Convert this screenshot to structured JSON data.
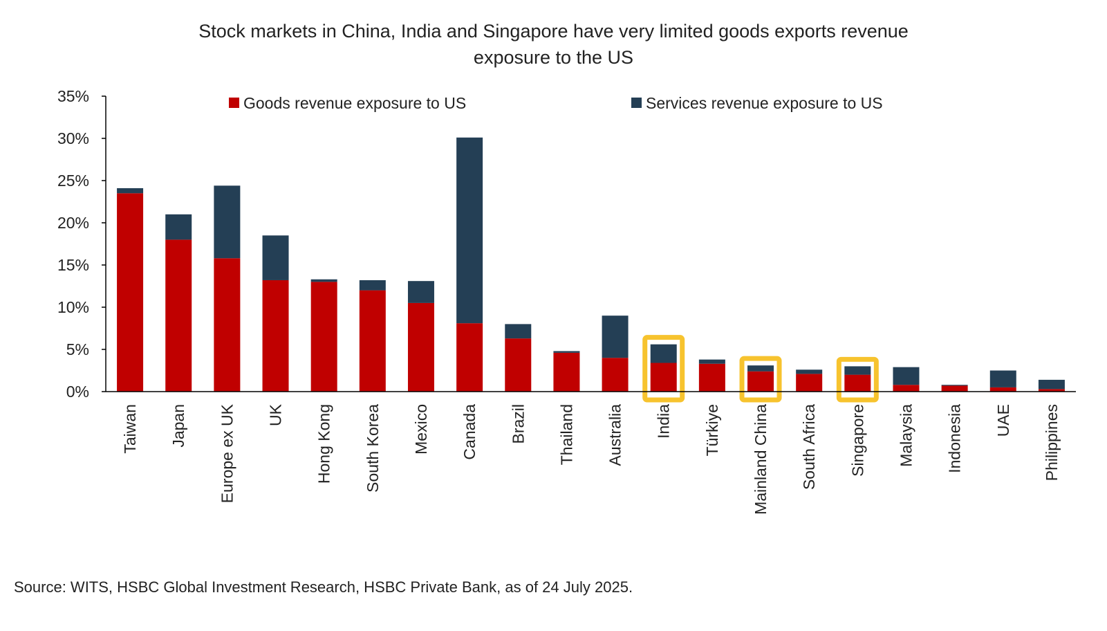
{
  "chart_data": {
    "type": "bar",
    "stacked": true,
    "title_lines": [
      "Stock markets in China, India and Singapore have very limited goods exports revenue",
      "exposure to the US"
    ],
    "xlabel": "",
    "ylabel": "",
    "ylim": [
      0,
      35
    ],
    "yticks": [
      0,
      5,
      10,
      15,
      20,
      25,
      30,
      35
    ],
    "ytick_labels": [
      "0%",
      "5%",
      "10%",
      "15%",
      "20%",
      "25%",
      "30%",
      "35%"
    ],
    "grid": false,
    "legend_position": "top",
    "categories": [
      "Taiwan",
      "Japan",
      "Europe ex UK",
      "UK",
      "Hong Kong",
      "South Korea",
      "Mexico",
      "Canada",
      "Brazil",
      "Thailand",
      "Australia",
      "India",
      "Türkiye",
      "Mainland China",
      "South Africa",
      "Singapore",
      "Malaysia",
      "Indonesia",
      "UAE",
      "Philippines"
    ],
    "series": [
      {
        "name": "Goods revenue exposure to US",
        "color": "#c00000",
        "values": [
          23.5,
          18.0,
          15.8,
          13.2,
          13.0,
          12.0,
          10.5,
          8.1,
          6.3,
          4.6,
          4.0,
          3.4,
          3.3,
          2.4,
          2.1,
          2.0,
          0.8,
          0.7,
          0.5,
          0.3
        ]
      },
      {
        "name": "Services revenue exposure to US",
        "color": "#243f55",
        "values": [
          0.6,
          3.0,
          8.6,
          5.3,
          0.3,
          1.2,
          2.6,
          22.0,
          1.7,
          0.2,
          5.0,
          2.2,
          0.5,
          0.7,
          0.5,
          1.0,
          2.1,
          0.1,
          2.0,
          1.1
        ]
      }
    ],
    "highlighted_categories": [
      "India",
      "Mainland China",
      "Singapore"
    ],
    "highlight_color": "#f7c32e",
    "source": "Source: WITS, HSBC Global Investment Research, HSBC Private Bank, as of 24 July 2025."
  }
}
